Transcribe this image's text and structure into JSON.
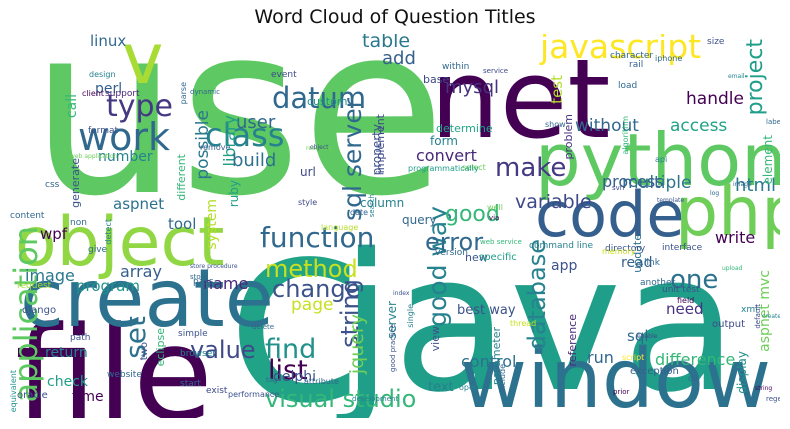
{
  "figure": {
    "title": "Word Cloud of Question Titles"
  },
  "palette": {
    "dark_purple": "#440154",
    "purple": "#482878",
    "indigo": "#3e4989",
    "blue": "#31688e",
    "teal": "#26828e",
    "green_teal": "#1f9e89",
    "green": "#35b779",
    "light_green": "#6ece58",
    "yellow_green": "#b5de2b",
    "yellow": "#fde725"
  },
  "words": [
    {
      "text": "use",
      "color": "#5ec962"
    },
    {
      "text": "java",
      "color": "#1f9e89"
    },
    {
      "text": "c",
      "color": "#20a386"
    },
    {
      "text": "file",
      "color": "#440154"
    },
    {
      "text": "net",
      "color": "#440154"
    },
    {
      "text": "create",
      "color": "#2c728e"
    },
    {
      "text": "window",
      "color": "#2c728e"
    },
    {
      "text": "python",
      "color": "#5ec962"
    },
    {
      "text": "object",
      "color": "#90d743"
    },
    {
      "text": "code",
      "color": "#355f8d"
    },
    {
      "text": "php",
      "color": "#6ece58"
    },
    {
      "text": "v",
      "color": "#a8db34"
    },
    {
      "text": "javascript",
      "color": "#fde725"
    },
    {
      "text": "application",
      "color": "#5ec962"
    },
    {
      "text": "work",
      "color": "#31688e"
    },
    {
      "text": "type",
      "color": "#443983"
    },
    {
      "text": "class",
      "color": "#26828e"
    },
    {
      "text": "function",
      "color": "#31688e"
    },
    {
      "text": "datum",
      "color": "#31688e"
    },
    {
      "text": "sql server",
      "color": "#31688e"
    },
    {
      "text": "make",
      "color": "#443983"
    },
    {
      "text": "good way",
      "color": "#26828e"
    },
    {
      "text": "database",
      "color": "#26828e"
    },
    {
      "text": "visual studio",
      "color": "#35b779"
    },
    {
      "text": "list",
      "color": "#440154"
    },
    {
      "text": "find",
      "color": "#21918c"
    },
    {
      "text": "method",
      "color": "#c8e020"
    },
    {
      "text": "change",
      "color": "#3b528b"
    },
    {
      "text": "value",
      "color": "#3e4989"
    },
    {
      "text": "set",
      "color": "#2c728e"
    },
    {
      "text": "error",
      "color": "#31688e"
    },
    {
      "text": "good",
      "color": "#35b779"
    },
    {
      "text": "string",
      "color": "#3b528b"
    },
    {
      "text": "one",
      "color": "#2c728e"
    },
    {
      "text": "project",
      "color": "#1f9e89"
    },
    {
      "text": "html",
      "color": "#2a788e"
    },
    {
      "text": "write",
      "color": "#440154"
    },
    {
      "text": "variable",
      "color": "#3e4989"
    },
    {
      "text": "access",
      "color": "#20a386"
    },
    {
      "text": "multiple",
      "color": "#2c728e"
    },
    {
      "text": "add",
      "color": "#355f8d"
    },
    {
      "text": "table",
      "color": "#2a788e"
    },
    {
      "text": "mysql",
      "color": "#46327e"
    },
    {
      "text": "user",
      "color": "#31688e"
    },
    {
      "text": "library",
      "color": "#1f9e89"
    },
    {
      "text": "possible",
      "color": "#2a788e"
    },
    {
      "text": "build",
      "color": "#2c728e"
    },
    {
      "text": "convert",
      "color": "#482878"
    },
    {
      "text": "without",
      "color": "#31688e"
    },
    {
      "text": "process",
      "color": "#355f8d"
    },
    {
      "text": "handle",
      "color": "#440154"
    },
    {
      "text": "jquery",
      "color": "#6ece58"
    },
    {
      "text": "page",
      "color": "#c8e020"
    },
    {
      "text": "name",
      "color": "#482878"
    },
    {
      "text": "array",
      "color": "#355f8d"
    },
    {
      "text": "image",
      "color": "#2a788e"
    },
    {
      "text": "program",
      "color": "#21918c"
    },
    {
      "text": "tool",
      "color": "#31688e"
    },
    {
      "text": "aspnet",
      "color": "#2c728e"
    },
    {
      "text": "wpf",
      "color": "#440154"
    },
    {
      "text": "linux",
      "color": "#31688e"
    },
    {
      "text": "perl",
      "color": "#355f8d"
    },
    {
      "text": "call",
      "color": "#35b779"
    },
    {
      "text": "number",
      "color": "#26828e"
    },
    {
      "text": "return",
      "color": "#26828e"
    },
    {
      "text": "check",
      "color": "#1f9e89"
    },
    {
      "text": "time",
      "color": "#440154"
    },
    {
      "text": "control",
      "color": "#2c728e"
    },
    {
      "text": "difference",
      "color": "#35b779"
    },
    {
      "text": "run",
      "color": "#31688e"
    },
    {
      "text": "sql",
      "color": "#31688e"
    },
    {
      "text": "need",
      "color": "#46327e"
    },
    {
      "text": "read",
      "color": "#355f8d"
    },
    {
      "text": "app",
      "color": "#3b528b"
    },
    {
      "text": "test",
      "color": "#b5de2b"
    },
    {
      "text": "aspnet mvc",
      "color": "#6ece58"
    },
    {
      "text": "system",
      "color": "#b5de2b"
    },
    {
      "text": "ruby",
      "color": "#1f9e89"
    },
    {
      "text": "delphi",
      "color": "#3b528b"
    },
    {
      "text": "server",
      "color": "#26828e"
    },
    {
      "text": "best way",
      "color": "#3b528b"
    },
    {
      "text": "text",
      "color": "#26828e"
    },
    {
      "text": "display",
      "color": "#21918c"
    },
    {
      "text": "element",
      "color": "#35b779"
    },
    {
      "text": "update",
      "color": "#2c728e"
    },
    {
      "text": "reference",
      "color": "#482878"
    },
    {
      "text": "column",
      "color": "#26828e"
    },
    {
      "text": "query",
      "color": "#31688e"
    },
    {
      "text": "property",
      "color": "#3b528b"
    },
    {
      "text": "url",
      "color": "#3e4989"
    },
    {
      "text": "form",
      "color": "#26828e"
    },
    {
      "text": "implement",
      "color": "#3e4989"
    },
    {
      "text": "determine",
      "color": "#20a386"
    },
    {
      "text": "base",
      "color": "#3e4989"
    },
    {
      "text": "problem",
      "color": "#46327e"
    },
    {
      "text": "generate",
      "color": "#3b528b"
    },
    {
      "text": "different",
      "color": "#35b779"
    },
    {
      "text": "custom",
      "color": "#21918c"
    },
    {
      "text": "eclipse",
      "color": "#35b779"
    },
    {
      "text": "django",
      "color": "#3b528b"
    },
    {
      "text": "two",
      "color": "#3b528b"
    },
    {
      "text": "website",
      "color": "#31688e"
    },
    {
      "text": "exception",
      "color": "#355f8d"
    },
    {
      "text": "output",
      "color": "#3e4989"
    },
    {
      "text": "xml",
      "color": "#26828e"
    },
    {
      "text": "link",
      "color": "#31688e"
    },
    {
      "text": "interface",
      "color": "#3b528b"
    },
    {
      "text": "another",
      "color": "#31688e"
    },
    {
      "text": "field",
      "color": "#440154"
    },
    {
      "text": "unit test",
      "color": "#3b528b"
    },
    {
      "text": "view",
      "color": "#3b528b"
    },
    {
      "text": "parameter",
      "color": "#26828e"
    },
    {
      "text": "new",
      "color": "#3b528b"
    },
    {
      "text": "specific",
      "color": "#1f9e89"
    },
    {
      "text": "version",
      "color": "#31688e"
    },
    {
      "text": "directory",
      "color": "#3b528b"
    },
    {
      "text": "command line",
      "color": "#26828e"
    },
    {
      "text": "memory",
      "color": "#c8e020"
    },
    {
      "text": "event",
      "color": "#3e4989"
    },
    {
      "text": "within",
      "color": "#31688e"
    },
    {
      "text": "service",
      "color": "#3e4989"
    },
    {
      "text": "character",
      "color": "#31688e"
    },
    {
      "text": "rail",
      "color": "#355f8d"
    },
    {
      "text": "iphone",
      "color": "#31688e"
    },
    {
      "text": "size",
      "color": "#3b528b"
    },
    {
      "text": "load",
      "color": "#31688e"
    },
    {
      "text": "algorithm",
      "color": "#35b779"
    },
    {
      "text": "support",
      "color": "#482878"
    },
    {
      "text": "design",
      "color": "#26828e"
    },
    {
      "text": "client",
      "color": "#440154"
    },
    {
      "text": "parse",
      "color": "#31688e"
    },
    {
      "text": "remove",
      "color": "#355f8d"
    },
    {
      "text": "show",
      "color": "#31688e"
    },
    {
      "text": "api",
      "color": "#26828e"
    },
    {
      "text": "select",
      "color": "#6ece58"
    },
    {
      "text": "svn",
      "color": "#3e4989"
    },
    {
      "text": "programmatically",
      "color": "#1f9e89"
    },
    {
      "text": "date",
      "color": "#31688e"
    },
    {
      "text": "style",
      "color": "#3e4989"
    },
    {
      "text": "language",
      "color": "#b5de2b"
    },
    {
      "text": "well",
      "color": "#6ece58"
    },
    {
      "text": "via",
      "color": "#440154"
    },
    {
      "text": "store",
      "color": "#31688e"
    },
    {
      "text": "pass",
      "color": "#31688e"
    },
    {
      "text": "non",
      "color": "#31688e"
    },
    {
      "text": "give",
      "color": "#31688e"
    },
    {
      "text": "detect",
      "color": "#26828e"
    },
    {
      "text": "content",
      "color": "#31688e"
    },
    {
      "text": "css",
      "color": "#31688e"
    },
    {
      "text": "format",
      "color": "#3b528b"
    },
    {
      "text": "request",
      "color": "#a8db34"
    },
    {
      "text": "path",
      "color": "#3b528b"
    },
    {
      "text": "simple",
      "color": "#3b528b"
    },
    {
      "text": "browser",
      "color": "#26828e"
    },
    {
      "text": "start",
      "color": "#31688e"
    },
    {
      "text": "exist",
      "color": "#3e4989"
    },
    {
      "text": "performance",
      "color": "#3b528b"
    },
    {
      "text": "attribute",
      "color": "#31688e"
    },
    {
      "text": "equivalent",
      "color": "#21918c"
    },
    {
      "text": "oracle",
      "color": "#3b528b"
    },
    {
      "text": "include",
      "color": "#31688e"
    },
    {
      "text": "open",
      "color": "#26828e"
    },
    {
      "text": "thread",
      "color": "#c8e020"
    },
    {
      "text": "good practice",
      "color": "#3b528b"
    },
    {
      "text": "single",
      "color": "#26828e"
    },
    {
      "text": "script",
      "color": "#fde725"
    },
    {
      "text": "dll",
      "color": "#31688e"
    },
    {
      "text": "prior",
      "color": "#440154"
    },
    {
      "text": "regex",
      "color": "#3b528b"
    },
    {
      "text": "development",
      "color": "#26828e"
    },
    {
      "text": "default",
      "color": "#3e4989"
    },
    {
      "text": "web service",
      "color": "#35b779"
    },
    {
      "text": "web application",
      "color": "#6ece58"
    },
    {
      "text": "resource",
      "color": "#6ece58"
    },
    {
      "text": "template",
      "color": "#3b528b"
    },
    {
      "text": "dynamic",
      "color": "#31688e"
    },
    {
      "text": "store procedure",
      "color": "#3b528b"
    },
    {
      "text": "search",
      "color": "#26828e"
    },
    {
      "text": "index",
      "color": "#3b528b"
    },
    {
      "text": "tag",
      "color": "#31688e"
    },
    {
      "text": "delete",
      "color": "#31688e"
    },
    {
      "text": "object",
      "color": "#3b528b"
    },
    {
      "text": "label",
      "color": "#31688e"
    },
    {
      "text": "image",
      "color": "#31688e"
    },
    {
      "text": "log",
      "color": "#31688e"
    },
    {
      "text": "upload",
      "color": "#35b779"
    },
    {
      "text": "enable",
      "color": "#3e4989"
    },
    {
      "text": "email",
      "color": "#26828e"
    },
    {
      "text": "string",
      "color": "#440154"
    },
    {
      "text": "create",
      "color": "#26828e"
    }
  ]
}
